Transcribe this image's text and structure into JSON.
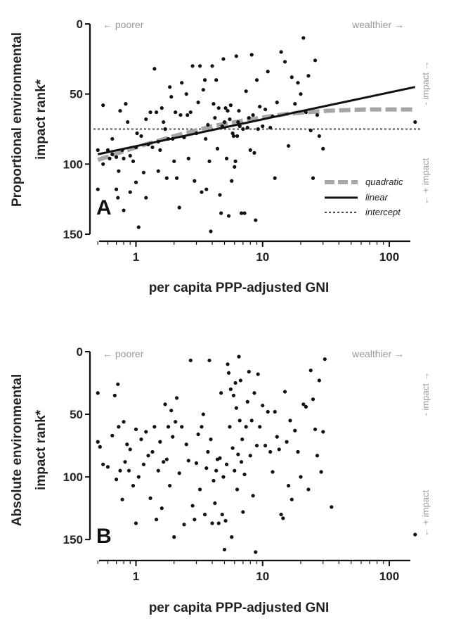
{
  "chart_data": [
    {
      "type": "scatter",
      "panel_label": "A",
      "ylabel_line1": "Proportional  environmental",
      "ylabel_line2": "impact rank*",
      "xlabel": "per capita PPP-adjusted GNI",
      "x_scale": "log",
      "xlim": [
        0.45,
        180
      ],
      "ylim": [
        0,
        150
      ],
      "y_inverted": true,
      "x_ticks": [
        1,
        10,
        100
      ],
      "x_tick_labels": [
        "1",
        "10",
        "100"
      ],
      "y_ticks": [
        0,
        50,
        100,
        150
      ],
      "y_tick_labels": [
        "0",
        "50",
        "100",
        "150"
      ],
      "annotation_left": "← poorer",
      "annotation_right": "wealthier →",
      "side_top": "- impact →",
      "side_bottom": "← + impact",
      "legend_position": "bottom-right",
      "legend": [
        {
          "label": "quadratic",
          "style": "dashed-thick",
          "color": "#a6a6a6"
        },
        {
          "label": "linear",
          "style": "solid",
          "color": "#111111"
        },
        {
          "label": "intercept",
          "style": "dotted",
          "color": "#111111"
        }
      ],
      "lines": {
        "linear": {
          "x": [
            0.5,
            160
          ],
          "y": [
            93,
            45
          ]
        },
        "quadratic": {
          "x": [
            0.5,
            1,
            2,
            4,
            8,
            16,
            32,
            64,
            160
          ],
          "y": [
            97,
            88,
            80,
            73,
            68,
            64,
            62,
            61,
            61
          ]
        },
        "intercept": {
          "y": 75
        }
      },
      "points": [
        [
          0.5,
          118
        ],
        [
          0.5,
          90
        ],
        [
          0.55,
          58
        ],
        [
          0.55,
          100
        ],
        [
          0.6,
          90
        ],
        [
          0.62,
          96
        ],
        [
          0.65,
          82
        ],
        [
          0.65,
          93
        ],
        [
          0.7,
          95
        ],
        [
          0.7,
          118
        ],
        [
          0.72,
          124
        ],
        [
          0.73,
          105
        ],
        [
          0.75,
          62
        ],
        [
          0.78,
          90
        ],
        [
          0.8,
          133
        ],
        [
          0.8,
          96
        ],
        [
          0.83,
          57
        ],
        [
          0.86,
          70
        ],
        [
          0.9,
          94
        ],
        [
          0.9,
          120
        ],
        [
          0.95,
          98
        ],
        [
          1.0,
          88
        ],
        [
          1.0,
          113
        ],
        [
          1.02,
          78
        ],
        [
          1.05,
          145
        ],
        [
          1.1,
          80
        ],
        [
          1.15,
          106
        ],
        [
          1.2,
          68
        ],
        [
          1.2,
          124
        ],
        [
          1.25,
          86
        ],
        [
          1.3,
          63
        ],
        [
          1.35,
          88
        ],
        [
          1.4,
          32
        ],
        [
          1.45,
          63
        ],
        [
          1.5,
          105
        ],
        [
          1.5,
          84
        ],
        [
          1.55,
          90
        ],
        [
          1.6,
          60
        ],
        [
          1.65,
          70
        ],
        [
          1.7,
          75
        ],
        [
          1.75,
          110
        ],
        [
          1.8,
          82
        ],
        [
          1.85,
          45
        ],
        [
          1.9,
          52
        ],
        [
          1.95,
          82
        ],
        [
          2.0,
          98
        ],
        [
          2.05,
          63
        ],
        [
          2.1,
          110
        ],
        [
          2.2,
          131
        ],
        [
          2.25,
          65
        ],
        [
          2.3,
          42
        ],
        [
          2.4,
          81
        ],
        [
          2.5,
          50
        ],
        [
          2.55,
          65
        ],
        [
          2.6,
          96
        ],
        [
          2.7,
          63
        ],
        [
          2.8,
          30
        ],
        [
          2.9,
          112
        ],
        [
          3.0,
          78
        ],
        [
          3.1,
          56
        ],
        [
          3.2,
          30
        ],
        [
          3.3,
          120
        ],
        [
          3.4,
          47
        ],
        [
          3.5,
          40
        ],
        [
          3.55,
          82
        ],
        [
          3.6,
          118
        ],
        [
          3.7,
          72
        ],
        [
          3.8,
          98
        ],
        [
          3.9,
          148
        ],
        [
          4.0,
          30
        ],
        [
          4.1,
          57
        ],
        [
          4.2,
          67
        ],
        [
          4.3,
          40
        ],
        [
          4.4,
          89
        ],
        [
          4.5,
          60
        ],
        [
          4.6,
          122
        ],
        [
          4.7,
          135
        ],
        [
          4.8,
          73
        ],
        [
          4.9,
          25
        ],
        [
          5.0,
          70
        ],
        [
          5.1,
          60
        ],
        [
          5.2,
          96
        ],
        [
          5.3,
          62
        ],
        [
          5.4,
          137
        ],
        [
          5.5,
          68
        ],
        [
          5.6,
          58
        ],
        [
          5.7,
          112
        ],
        [
          5.8,
          78
        ],
        [
          5.9,
          80
        ],
        [
          6.0,
          102
        ],
        [
          6.1,
          98
        ],
        [
          6.2,
          23
        ],
        [
          6.3,
          80
        ],
        [
          6.4,
          70
        ],
        [
          6.5,
          62
        ],
        [
          6.6,
          73
        ],
        [
          6.8,
          135
        ],
        [
          7.0,
          75
        ],
        [
          7.2,
          135
        ],
        [
          7.4,
          48
        ],
        [
          7.6,
          74
        ],
        [
          7.8,
          67
        ],
        [
          8.0,
          90
        ],
        [
          8.2,
          22
        ],
        [
          8.4,
          65
        ],
        [
          8.6,
          92
        ],
        [
          8.8,
          140
        ],
        [
          9.0,
          40
        ],
        [
          9.2,
          75
        ],
        [
          9.5,
          59
        ],
        [
          10.0,
          73
        ],
        [
          10.5,
          61
        ],
        [
          11.0,
          34
        ],
        [
          11.5,
          74
        ],
        [
          12.0,
          66
        ],
        [
          12.5,
          110
        ],
        [
          13.0,
          56
        ],
        [
          14.0,
          20
        ],
        [
          15.0,
          27
        ],
        [
          16.0,
          87
        ],
        [
          17.0,
          38
        ],
        [
          18.0,
          57
        ],
        [
          19.0,
          42
        ],
        [
          20.0,
          50
        ],
        [
          21.0,
          10
        ],
        [
          22.0,
          63
        ],
        [
          23.0,
          37
        ],
        [
          24.0,
          76
        ],
        [
          25.0,
          110
        ],
        [
          26.0,
          26
        ],
        [
          27.0,
          65
        ],
        [
          28.0,
          80
        ],
        [
          30.0,
          89
        ],
        [
          160.0,
          70
        ]
      ]
    },
    {
      "type": "scatter",
      "panel_label": "B",
      "ylabel_line1": "Absolute environmental",
      "ylabel_line2": "impact rank*",
      "xlabel": "per capita PPP-adjusted GNI",
      "x_scale": "log",
      "xlim": [
        0.45,
        180
      ],
      "ylim": [
        0,
        160
      ],
      "y_inverted": true,
      "x_ticks": [
        1,
        10,
        100
      ],
      "x_tick_labels": [
        "1",
        "10",
        "100"
      ],
      "y_ticks": [
        0,
        50,
        100,
        150
      ],
      "y_tick_labels": [
        "0",
        "50",
        "100",
        "150"
      ],
      "annotation_left": "← poorer",
      "annotation_right": "wealthier →",
      "side_top": "- impact →",
      "side_bottom": "← + impact",
      "points": [
        [
          0.5,
          33
        ],
        [
          0.5,
          72
        ],
        [
          0.52,
          76
        ],
        [
          0.55,
          90
        ],
        [
          0.6,
          92
        ],
        [
          0.65,
          67
        ],
        [
          0.68,
          35
        ],
        [
          0.7,
          102
        ],
        [
          0.72,
          26
        ],
        [
          0.73,
          60
        ],
        [
          0.75,
          95
        ],
        [
          0.78,
          118
        ],
        [
          0.8,
          56
        ],
        [
          0.82,
          88
        ],
        [
          0.85,
          74
        ],
        [
          0.88,
          95
        ],
        [
          0.9,
          78
        ],
        [
          0.95,
          107
        ],
        [
          1.0,
          62
        ],
        [
          1.0,
          137
        ],
        [
          1.05,
          100
        ],
        [
          1.1,
          70
        ],
        [
          1.15,
          90
        ],
        [
          1.2,
          64
        ],
        [
          1.25,
          83
        ],
        [
          1.3,
          117
        ],
        [
          1.35,
          80
        ],
        [
          1.4,
          60
        ],
        [
          1.45,
          134
        ],
        [
          1.5,
          95
        ],
        [
          1.55,
          72
        ],
        [
          1.6,
          125
        ],
        [
          1.65,
          88
        ],
        [
          1.7,
          42
        ],
        [
          1.75,
          86
        ],
        [
          1.8,
          60
        ],
        [
          1.85,
          107
        ],
        [
          1.9,
          47
        ],
        [
          1.95,
          68
        ],
        [
          2.0,
          148
        ],
        [
          2.05,
          56
        ],
        [
          2.1,
          37
        ],
        [
          2.2,
          97
        ],
        [
          2.3,
          60
        ],
        [
          2.4,
          138
        ],
        [
          2.5,
          74
        ],
        [
          2.6,
          87
        ],
        [
          2.7,
          7
        ],
        [
          2.8,
          123
        ],
        [
          2.9,
          134
        ],
        [
          3.0,
          89
        ],
        [
          3.1,
          66
        ],
        [
          3.2,
          110
        ],
        [
          3.3,
          60
        ],
        [
          3.4,
          50
        ],
        [
          3.5,
          130
        ],
        [
          3.6,
          93
        ],
        [
          3.7,
          80
        ],
        [
          3.8,
          7
        ],
        [
          3.9,
          70
        ],
        [
          4.0,
          137
        ],
        [
          4.1,
          103
        ],
        [
          4.2,
          121
        ],
        [
          4.3,
          95
        ],
        [
          4.4,
          86
        ],
        [
          4.5,
          137
        ],
        [
          4.6,
          85
        ],
        [
          4.7,
          33
        ],
        [
          4.8,
          130
        ],
        [
          4.9,
          100
        ],
        [
          5.0,
          158
        ],
        [
          5.1,
          135
        ],
        [
          5.2,
          90
        ],
        [
          5.3,
          10
        ],
        [
          5.4,
          17
        ],
        [
          5.5,
          60
        ],
        [
          5.6,
          30
        ],
        [
          5.7,
          148
        ],
        [
          5.8,
          77
        ],
        [
          5.9,
          35
        ],
        [
          6.0,
          95
        ],
        [
          6.1,
          25
        ],
        [
          6.2,
          45
        ],
        [
          6.3,
          110
        ],
        [
          6.4,
          82
        ],
        [
          6.5,
          4
        ],
        [
          6.6,
          55
        ],
        [
          6.7,
          23
        ],
        [
          6.8,
          88
        ],
        [
          6.9,
          70
        ],
        [
          7.0,
          128
        ],
        [
          7.2,
          98
        ],
        [
          7.4,
          60
        ],
        [
          7.6,
          40
        ],
        [
          7.8,
          16
        ],
        [
          8.0,
          83
        ],
        [
          8.2,
          55
        ],
        [
          8.4,
          115
        ],
        [
          8.6,
          33
        ],
        [
          8.8,
          160
        ],
        [
          9.0,
          75
        ],
        [
          9.2,
          18
        ],
        [
          9.5,
          60
        ],
        [
          10.0,
          43
        ],
        [
          10.5,
          75
        ],
        [
          11.0,
          48
        ],
        [
          11.5,
          80
        ],
        [
          12.0,
          96
        ],
        [
          12.5,
          48
        ],
        [
          13.0,
          68
        ],
        [
          13.5,
          78
        ],
        [
          14.0,
          130
        ],
        [
          14.5,
          133
        ],
        [
          15.0,
          32
        ],
        [
          15.5,
          72
        ],
        [
          16.0,
          107
        ],
        [
          16.5,
          55
        ],
        [
          17.0,
          118
        ],
        [
          18.0,
          63
        ],
        [
          19.0,
          80
        ],
        [
          20.0,
          100
        ],
        [
          21.0,
          42
        ],
        [
          22.0,
          44
        ],
        [
          23.0,
          110
        ],
        [
          24.0,
          15
        ],
        [
          25.0,
          38
        ],
        [
          26.0,
          62
        ],
        [
          27.0,
          83
        ],
        [
          28.0,
          23
        ],
        [
          29.0,
          96
        ],
        [
          30.0,
          64
        ],
        [
          31.0,
          6
        ],
        [
          35.0,
          124
        ],
        [
          160.0,
          146
        ]
      ]
    }
  ]
}
